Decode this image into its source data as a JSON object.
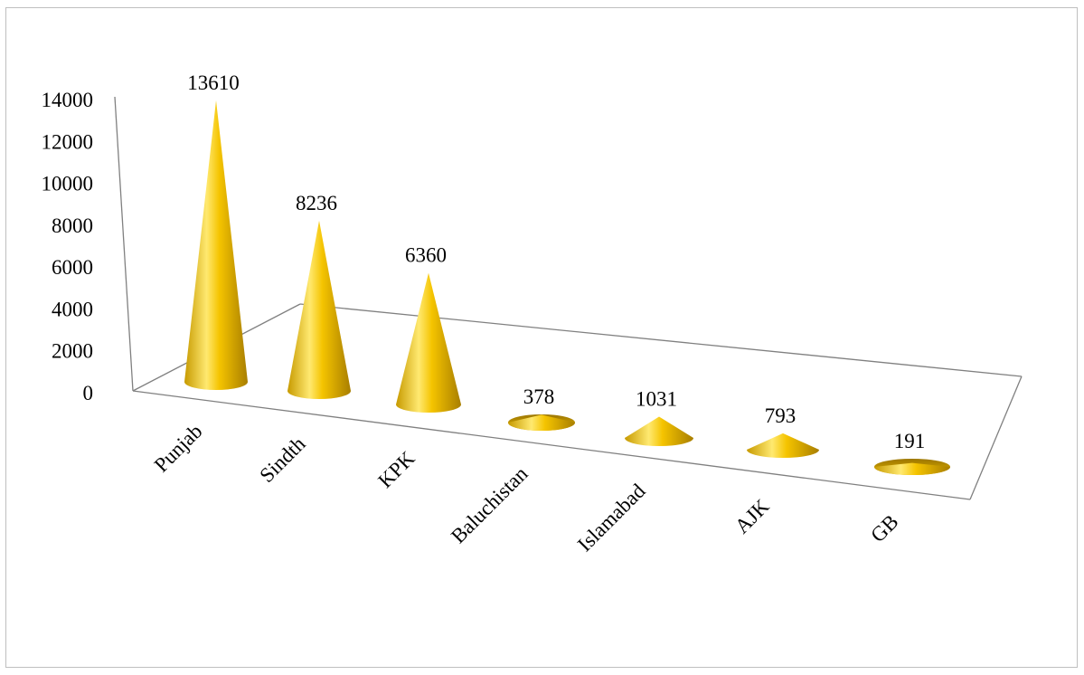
{
  "chart_data": {
    "type": "bar",
    "subtype": "3d-cone",
    "title": "",
    "xlabel": "",
    "ylabel": "",
    "categories": [
      "Punjab",
      "Sindth",
      "KPK",
      "Baluchistan",
      "Islamabad",
      "AJK",
      "GB"
    ],
    "values": [
      13610,
      8236,
      6360,
      378,
      1031,
      793,
      191
    ],
    "data_labels": [
      "13610",
      "8236",
      "6360",
      "378",
      "1031",
      "793",
      "191"
    ],
    "ylim": [
      0,
      14000
    ],
    "yticks": [
      "0",
      "2000",
      "4000",
      "6000",
      "8000",
      "10000",
      "12000",
      "14000"
    ],
    "legend": "none",
    "grid": false,
    "colors": {
      "cone_light": "#ffe45c",
      "cone_mid": "#f2c200",
      "cone_dark": "#b38a00",
      "axis": "#808080"
    }
  }
}
